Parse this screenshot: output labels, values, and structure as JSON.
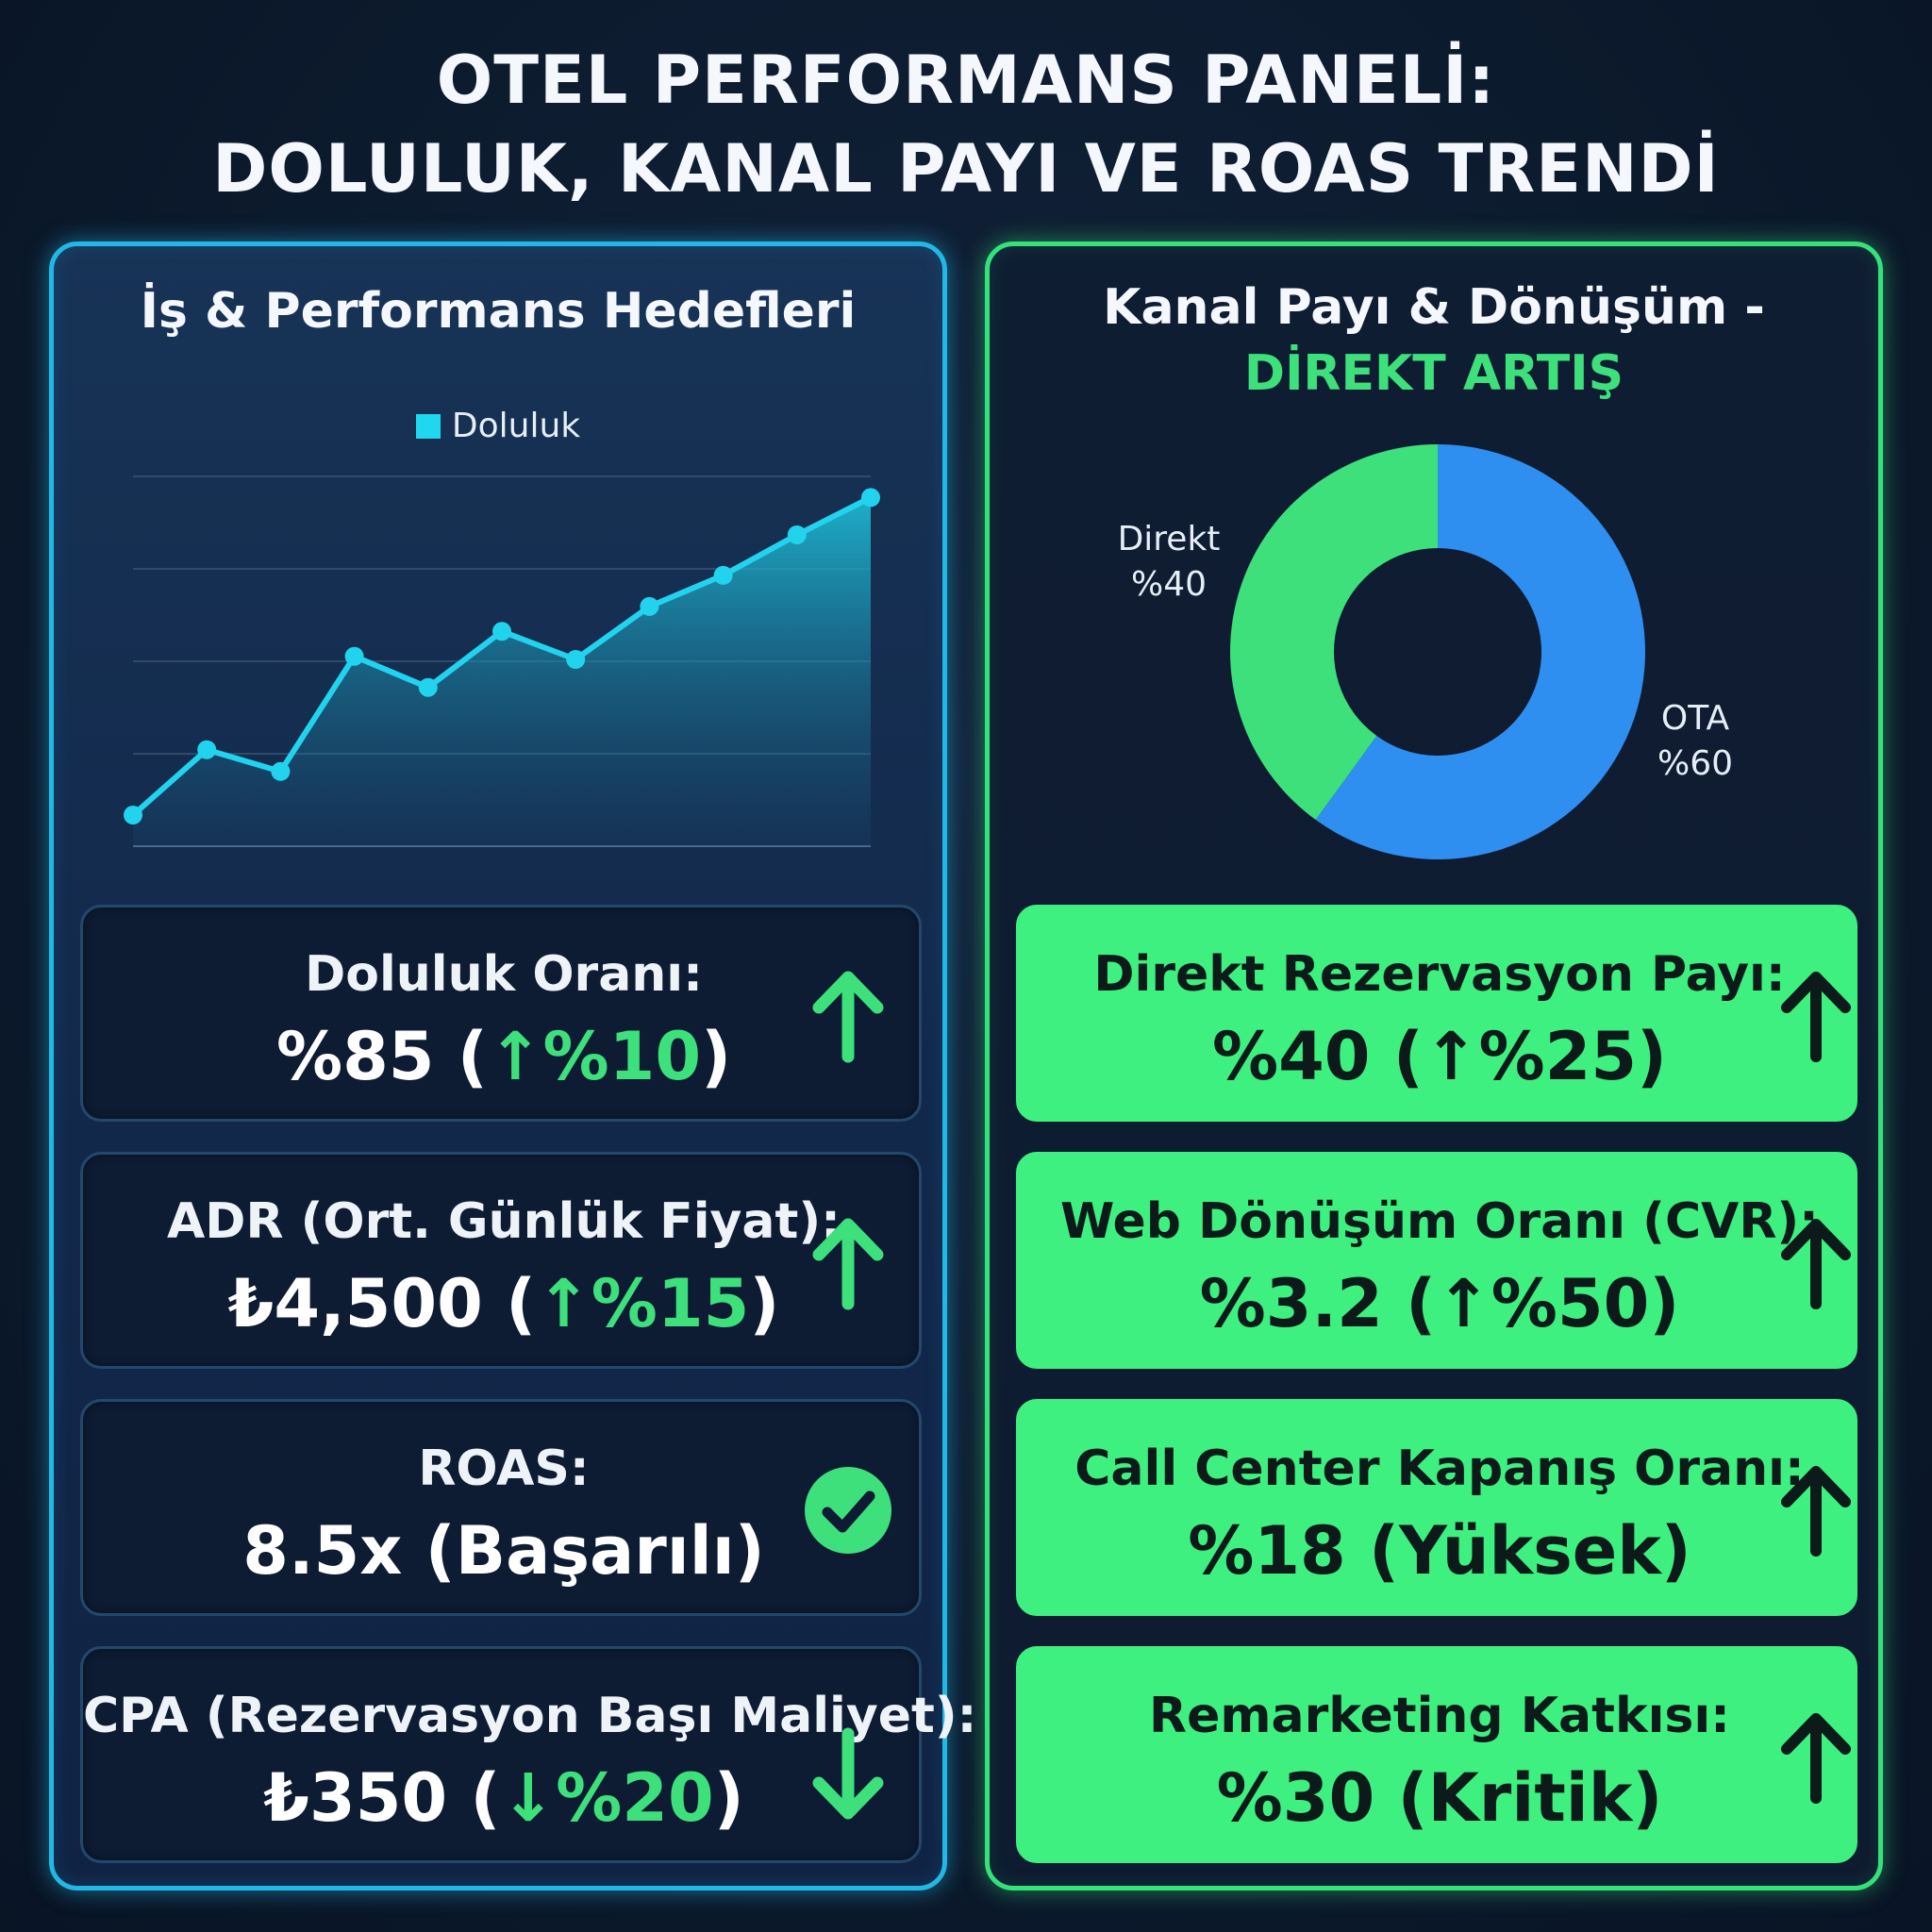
{
  "title": {
    "line1": "OTEL PERFORMANS PANELİ:",
    "line2": "DOLULUK, KANAL PAYI VE ROAS TRENDİ"
  },
  "left_panel": {
    "title": "İş & Performans Hedefleri",
    "cards": [
      {
        "label": "Doluluk Oranı:",
        "value_main": "%85 (",
        "value_delta": "↑%10",
        "value_end": ")",
        "icon": "arrow-up-icon"
      },
      {
        "label": "ADR (Ort. Günlük Fiyat):",
        "value_main": "₺4,500 (",
        "value_delta": "↑%15",
        "value_end": ")",
        "icon": "arrow-up-icon"
      },
      {
        "label": "ROAS:",
        "value_main": "8.5x (Başarılı)",
        "value_delta": "",
        "value_end": "",
        "icon": "check-circle-icon"
      },
      {
        "label": "CPA (Rezervasyon Başı Maliyet):",
        "value_main": "₺350 (",
        "value_delta": "↓%20",
        "value_end": ")",
        "icon": "arrow-down-icon"
      }
    ]
  },
  "right_panel": {
    "title_line1": "Kanal Payı & Dönüşüm -",
    "title_line2": "DİREKT ARTIŞ",
    "cards": [
      {
        "label": "Direkt Rezervasyon Payı:",
        "value": "%40 (↑%25)",
        "icon": "arrow-up-icon"
      },
      {
        "label": "Web Dönüşüm Oranı (CVR):",
        "value": "%3.2 (↑%50)",
        "icon": "arrow-up-icon"
      },
      {
        "label": "Call Center Kapanış Oranı:",
        "value": "%18 (Yüksek)",
        "icon": "arrow-up-icon"
      },
      {
        "label": "Remarketing Katkısı:",
        "value": "%30 (Kritik)",
        "icon": "arrow-up-icon"
      }
    ]
  },
  "colors": {
    "line": "#22d3ee",
    "direkt": "#3ee07c",
    "ota": "#2f8ff0",
    "accent_green": "#3ee07c"
  },
  "chart_data": [
    {
      "type": "area",
      "legend": [
        "Doluluk"
      ],
      "series": [
        {
          "name": "Doluluk",
          "values": [
            1.0,
            3.1,
            2.4,
            6.1,
            5.1,
            6.9,
            6.0,
            7.7,
            8.7,
            10.0,
            11.2
          ]
        }
      ],
      "ylim": [
        0,
        12
      ],
      "grid": true,
      "legend_position": "top-center"
    },
    {
      "type": "pie",
      "donut": true,
      "slices": [
        {
          "label": "OTA",
          "value": 60,
          "text": "OTA",
          "pct": "%60"
        },
        {
          "label": "Direkt",
          "value": 40,
          "text": "Direkt",
          "pct": "%40"
        }
      ]
    }
  ]
}
